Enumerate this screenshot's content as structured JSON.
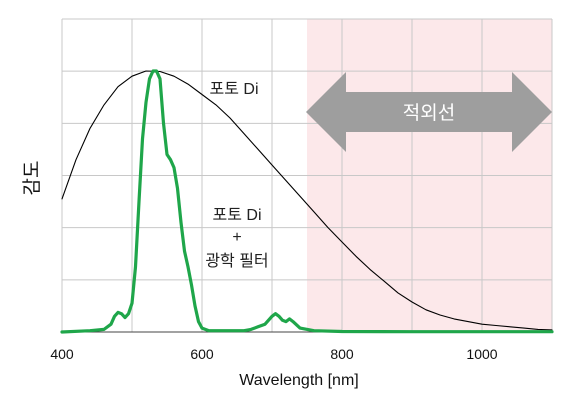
{
  "chart_data": {
    "type": "line",
    "xlabel": "Wavelength [nm]",
    "ylabel": "감도",
    "xlim": [
      400,
      1100
    ],
    "xticks": [
      400,
      600,
      800,
      1000
    ],
    "grid": true,
    "colors": {
      "grid": "#c8c8c8",
      "ir_region": "#fce8ea",
      "arrow": "#9e9e9e",
      "series_photo": "#000000",
      "series_filter": "#1fa64a"
    },
    "ir_region": {
      "x_start": 750,
      "x_end": 1100,
      "label": "적외선"
    },
    "annotations": {
      "photo_di": "포토 Di",
      "filter_line1": "포토 Di",
      "filter_line2": "+",
      "filter_line3": "광학 필터"
    },
    "series": [
      {
        "x": [
          400,
          420,
          440,
          460,
          480,
          500,
          520,
          540,
          560,
          580,
          600,
          620,
          640,
          660,
          680,
          700,
          720,
          740,
          760,
          780,
          800,
          820,
          840,
          860,
          880,
          900,
          920,
          940,
          960,
          980,
          1000,
          1020,
          1040,
          1060,
          1080,
          1100
        ],
        "values": [
          0.51,
          0.66,
          0.78,
          0.87,
          0.94,
          0.98,
          1.0,
          0.998,
          0.98,
          0.95,
          0.91,
          0.87,
          0.82,
          0.76,
          0.7,
          0.64,
          0.58,
          0.52,
          0.46,
          0.4,
          0.345,
          0.29,
          0.24,
          0.195,
          0.15,
          0.115,
          0.085,
          0.065,
          0.05,
          0.04,
          0.03,
          0.025,
          0.02,
          0.015,
          0.01,
          0.008
        ]
      },
      {
        "x": [
          400,
          440,
          460,
          470,
          475,
          480,
          485,
          490,
          495,
          500,
          505,
          510,
          515,
          520,
          525,
          530,
          535,
          540,
          545,
          550,
          555,
          560,
          565,
          570,
          575,
          580,
          585,
          590,
          595,
          600,
          610,
          620,
          640,
          660,
          670,
          680,
          690,
          700,
          705,
          710,
          715,
          720,
          725,
          730,
          740,
          760,
          800,
          900,
          1000,
          1100
        ],
        "values": [
          0.0,
          0.005,
          0.01,
          0.03,
          0.06,
          0.075,
          0.07,
          0.055,
          0.07,
          0.11,
          0.25,
          0.5,
          0.74,
          0.88,
          0.97,
          1.0,
          1.0,
          0.97,
          0.8,
          0.68,
          0.66,
          0.63,
          0.55,
          0.42,
          0.31,
          0.25,
          0.18,
          0.1,
          0.04,
          0.015,
          0.005,
          0.005,
          0.005,
          0.005,
          0.01,
          0.02,
          0.03,
          0.06,
          0.07,
          0.06,
          0.045,
          0.04,
          0.05,
          0.04,
          0.015,
          0.005,
          0.002,
          0.001,
          0.001,
          0.001
        ]
      }
    ]
  }
}
